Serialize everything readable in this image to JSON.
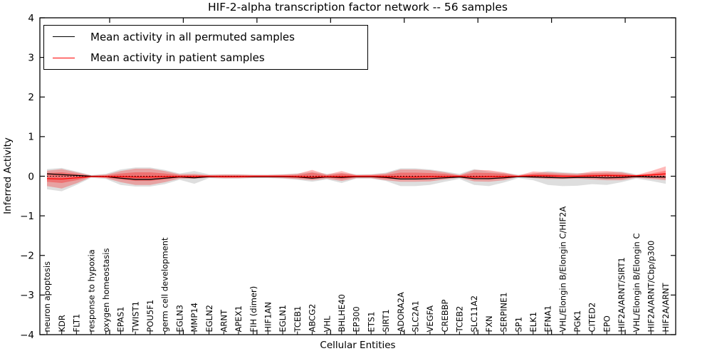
{
  "chart": {
    "title": "HIF-2-alpha transcription factor network -- 56 samples",
    "x_axis_label": "Cellular Entities",
    "y_axis_label": "Inferred Activity",
    "legend": {
      "items": [
        {
          "label": "Mean activity in all permuted samples",
          "color": "#000000"
        },
        {
          "label": "Mean activity in patient samples",
          "color": "#ff0000"
        }
      ]
    }
  },
  "chart_data": {
    "type": "line",
    "title": "HIF-2-alpha transcription factor network -- 56 samples",
    "xlabel": "Cellular Entities",
    "ylabel": "Inferred Activity",
    "ylim": [
      -4,
      4
    ],
    "y_ticks": [
      4,
      3,
      2,
      1,
      0,
      -1,
      -2,
      -3,
      -4
    ],
    "grid": false,
    "legend_position": "upper left",
    "categories": [
      "neuron apoptosis",
      "KDR",
      "FLT1",
      "response to hypoxia",
      "oxygen homeostasis",
      "EPAS1",
      "TWIST1",
      "POU5F1",
      "germ cell development",
      "EGLN3",
      "MMP14",
      "EGLN2",
      "ARNT",
      "APEX1",
      "FIH (dimer)",
      "HIF1AN",
      "EGLN1",
      "TCEB1",
      "ABCG2",
      "VHL",
      "BHLHE40",
      "EP300",
      "ETS1",
      "SIRT1",
      "ADORA2A",
      "SLC2A1",
      "VEGFA",
      "CREBBP",
      "TCEB2",
      "SLC11A2",
      "FXN",
      "SERPINE1",
      "SP1",
      "ELK1",
      "EFNA1",
      "VHL/Elongin B/Elongin C/HIF2A",
      "PGK1",
      "CITED2",
      "EPO",
      "HIF2A/ARNT/SIRT1",
      "VHL/Elongin B/Elongin C",
      "HIF2A/ARNT/Cbp/p300",
      "HIF2A/ARNT"
    ],
    "series": [
      {
        "name": "Mean activity in all permuted samples",
        "color": "#000000",
        "values": [
          0.06,
          0.04,
          0.02,
          0.0,
          -0.01,
          -0.05,
          -0.08,
          -0.08,
          -0.05,
          -0.02,
          -0.04,
          -0.01,
          -0.01,
          -0.01,
          -0.01,
          -0.01,
          -0.01,
          -0.02,
          -0.05,
          -0.02,
          -0.03,
          -0.01,
          -0.01,
          -0.03,
          -0.07,
          -0.07,
          -0.06,
          -0.04,
          -0.02,
          -0.06,
          -0.06,
          -0.04,
          -0.01,
          -0.02,
          -0.03,
          -0.04,
          -0.03,
          -0.03,
          -0.04,
          -0.03,
          -0.01,
          -0.02,
          -0.02
        ]
      },
      {
        "name": "Mean activity in patient samples",
        "color": "#ff0000",
        "values": [
          -0.06,
          -0.07,
          -0.04,
          -0.01,
          -0.01,
          -0.01,
          -0.02,
          -0.02,
          -0.01,
          -0.01,
          -0.01,
          0.0,
          -0.01,
          -0.01,
          0.0,
          0.0,
          0.0,
          -0.01,
          -0.02,
          -0.01,
          -0.01,
          0.0,
          0.0,
          -0.01,
          -0.02,
          -0.02,
          -0.01,
          -0.01,
          0.0,
          -0.02,
          -0.01,
          -0.01,
          0.0,
          0.01,
          0.01,
          0.0,
          0.0,
          0.01,
          0.02,
          0.01,
          0.01,
          0.03,
          0.06
        ]
      }
    ],
    "reference_line": {
      "value": 0,
      "style": "dotted",
      "color": "#000000"
    },
    "bands": [
      {
        "name": "permuted-sample-range",
        "fill": "rgba(0,0,0,0.13)",
        "upper": [
          0.18,
          0.21,
          0.12,
          0.03,
          0.06,
          0.17,
          0.22,
          0.22,
          0.16,
          0.07,
          0.13,
          0.05,
          0.05,
          0.05,
          0.04,
          0.04,
          0.05,
          0.07,
          0.11,
          0.06,
          0.08,
          0.05,
          0.05,
          0.09,
          0.2,
          0.2,
          0.17,
          0.12,
          0.06,
          0.18,
          0.12,
          0.08,
          0.04,
          0.06,
          0.13,
          0.1,
          0.08,
          0.08,
          0.1,
          0.12,
          0.05,
          0.05,
          0.08
        ],
        "lower": [
          -0.33,
          -0.38,
          -0.22,
          -0.04,
          -0.07,
          -0.22,
          -0.26,
          -0.26,
          -0.2,
          -0.09,
          -0.19,
          -0.05,
          -0.06,
          -0.06,
          -0.05,
          -0.05,
          -0.06,
          -0.09,
          -0.14,
          -0.08,
          -0.17,
          -0.06,
          -0.06,
          -0.12,
          -0.25,
          -0.25,
          -0.22,
          -0.14,
          -0.07,
          -0.22,
          -0.25,
          -0.16,
          -0.05,
          -0.1,
          -0.22,
          -0.25,
          -0.24,
          -0.2,
          -0.22,
          -0.15,
          -0.06,
          -0.12,
          -0.19
        ]
      },
      {
        "name": "patient-sample-range",
        "fill": "rgba(255,0,0,0.27)",
        "upper": [
          0.14,
          0.18,
          0.1,
          0.02,
          0.04,
          0.13,
          0.19,
          0.19,
          0.13,
          0.05,
          0.06,
          0.03,
          0.04,
          0.04,
          0.03,
          0.03,
          0.04,
          0.06,
          0.16,
          0.04,
          0.13,
          0.03,
          0.04,
          0.07,
          0.17,
          0.17,
          0.15,
          0.1,
          0.03,
          0.16,
          0.15,
          0.1,
          0.02,
          0.12,
          0.1,
          0.08,
          0.06,
          0.12,
          0.13,
          0.1,
          0.03,
          0.13,
          0.25
        ],
        "lower": [
          -0.25,
          -0.31,
          -0.18,
          -0.02,
          -0.05,
          -0.15,
          -0.22,
          -0.22,
          -0.15,
          -0.06,
          -0.06,
          -0.04,
          -0.05,
          -0.05,
          -0.04,
          -0.04,
          -0.05,
          -0.07,
          -0.1,
          -0.06,
          -0.12,
          -0.05,
          -0.05,
          -0.1,
          -0.14,
          -0.14,
          -0.13,
          -0.08,
          -0.04,
          -0.13,
          -0.14,
          -0.1,
          -0.02,
          -0.05,
          -0.07,
          -0.07,
          -0.06,
          -0.08,
          -0.1,
          -0.1,
          -0.04,
          -0.07,
          -0.1
        ]
      },
      {
        "name": "patient-sample-inner-range",
        "fill": "rgba(255,0,0,0.30)",
        "upper": [
          0.08,
          0.1,
          0.06,
          0.01,
          0.02,
          0.07,
          0.1,
          0.1,
          0.07,
          0.03,
          0.03,
          0.02,
          0.02,
          0.02,
          0.02,
          0.02,
          0.02,
          0.03,
          0.09,
          0.02,
          0.07,
          0.02,
          0.02,
          0.04,
          0.09,
          0.09,
          0.08,
          0.06,
          0.02,
          0.09,
          0.08,
          0.06,
          0.01,
          0.07,
          0.06,
          0.04,
          0.03,
          0.07,
          0.07,
          0.06,
          0.02,
          0.07,
          0.14
        ],
        "lower": [
          -0.14,
          -0.17,
          -0.1,
          -0.01,
          -0.03,
          -0.08,
          -0.12,
          -0.12,
          -0.08,
          -0.03,
          -0.03,
          -0.02,
          -0.03,
          -0.03,
          -0.02,
          -0.02,
          -0.03,
          -0.04,
          -0.06,
          -0.03,
          -0.07,
          -0.03,
          -0.03,
          -0.06,
          -0.08,
          -0.08,
          -0.07,
          -0.04,
          -0.02,
          -0.07,
          -0.08,
          -0.06,
          -0.01,
          -0.03,
          -0.04,
          -0.04,
          -0.03,
          -0.04,
          -0.06,
          -0.06,
          -0.02,
          -0.04,
          -0.06
        ]
      }
    ]
  }
}
